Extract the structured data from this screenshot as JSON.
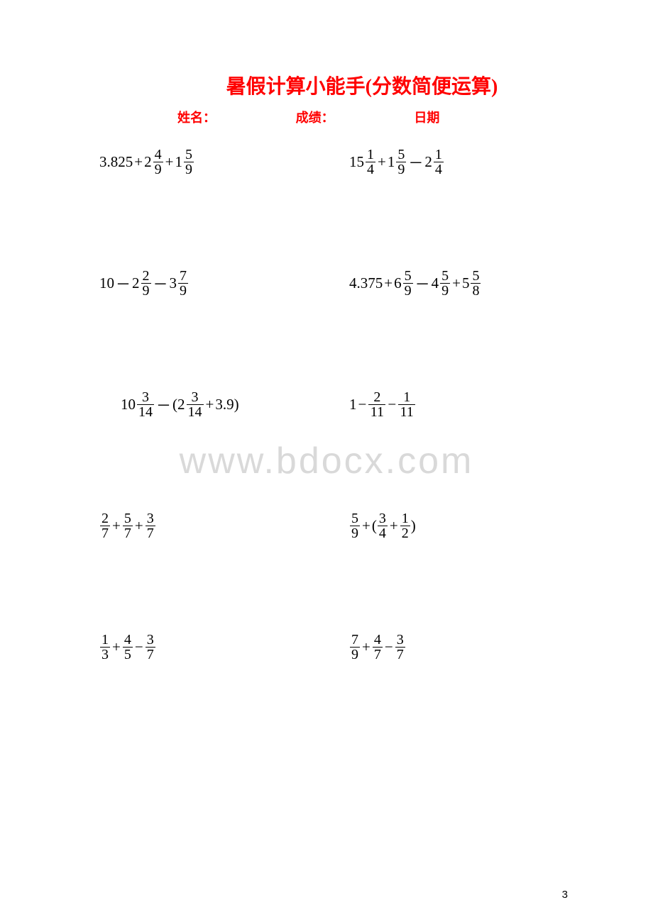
{
  "title": "暑假计算小能手(分数简便运算)",
  "header": {
    "name_label": "姓名：",
    "score_label": "成绩：",
    "date_label": "日期"
  },
  "watermark": "www.bdocx.com",
  "page_number": "3",
  "problems": {
    "row1": {
      "left": {
        "parts": [
          {
            "type": "text",
            "value": "3.825"
          },
          {
            "type": "op",
            "value": "+"
          },
          {
            "type": "mixed",
            "whole": "2",
            "num": "4",
            "den": "9"
          },
          {
            "type": "op",
            "value": "+"
          },
          {
            "type": "mixed",
            "whole": "1",
            "num": "5",
            "den": "9"
          }
        ]
      },
      "right": {
        "parts": [
          {
            "type": "mixed",
            "whole": "15",
            "num": "1",
            "den": "4"
          },
          {
            "type": "op",
            "value": "+"
          },
          {
            "type": "mixed",
            "whole": "1",
            "num": "5",
            "den": "9"
          },
          {
            "type": "op",
            "value": "－"
          },
          {
            "type": "mixed",
            "whole": "2",
            "num": "1",
            "den": "4"
          }
        ]
      }
    },
    "row2": {
      "left": {
        "parts": [
          {
            "type": "text",
            "value": "10"
          },
          {
            "type": "op",
            "value": "－"
          },
          {
            "type": "mixed",
            "whole": "2",
            "num": "2",
            "den": "9"
          },
          {
            "type": "op",
            "value": "－"
          },
          {
            "type": "mixed",
            "whole": "3",
            "num": "7",
            "den": "9"
          }
        ]
      },
      "right": {
        "parts": [
          {
            "type": "text",
            "value": "4.375"
          },
          {
            "type": "op",
            "value": "+"
          },
          {
            "type": "mixed",
            "whole": "6",
            "num": "5",
            "den": "9"
          },
          {
            "type": "op",
            "value": "－"
          },
          {
            "type": "mixed",
            "whole": "4",
            "num": "5",
            "den": "9"
          },
          {
            "type": "op",
            "value": "+"
          },
          {
            "type": "mixed",
            "whole": "5",
            "num": "5",
            "den": "8"
          }
        ]
      }
    },
    "row3": {
      "left": {
        "parts": [
          {
            "type": "mixed",
            "whole": "10",
            "num": "3",
            "den": "14",
            "wide": true
          },
          {
            "type": "op",
            "value": "－"
          },
          {
            "type": "text",
            "value": "("
          },
          {
            "type": "mixed",
            "whole": "2",
            "num": "3",
            "den": "14",
            "wide": true
          },
          {
            "type": "op",
            "value": "+"
          },
          {
            "type": "text",
            "value": "3.9)"
          }
        ]
      },
      "right": {
        "parts": [
          {
            "type": "text",
            "value": "1"
          },
          {
            "type": "op",
            "value": "−"
          },
          {
            "type": "frac",
            "num": "2",
            "den": "11",
            "wide": true
          },
          {
            "type": "op",
            "value": "−"
          },
          {
            "type": "frac",
            "num": "1",
            "den": "11",
            "wide": true
          }
        ]
      }
    },
    "row4": {
      "left": {
        "parts": [
          {
            "type": "frac",
            "num": "2",
            "den": "7"
          },
          {
            "type": "op",
            "value": "+"
          },
          {
            "type": "frac",
            "num": "5",
            "den": "7"
          },
          {
            "type": "op",
            "value": "+"
          },
          {
            "type": "frac",
            "num": "3",
            "den": "7"
          }
        ]
      },
      "right": {
        "parts": [
          {
            "type": "frac",
            "num": "5",
            "den": "9"
          },
          {
            "type": "op",
            "value": "+"
          },
          {
            "type": "text",
            "value": "("
          },
          {
            "type": "frac",
            "num": "3",
            "den": "4"
          },
          {
            "type": "op",
            "value": "+"
          },
          {
            "type": "frac",
            "num": "1",
            "den": "2"
          },
          {
            "type": "text",
            "value": ")"
          }
        ]
      }
    },
    "row5": {
      "left": {
        "parts": [
          {
            "type": "frac",
            "num": "1",
            "den": "3"
          },
          {
            "type": "op",
            "value": "+"
          },
          {
            "type": "frac",
            "num": "4",
            "den": "5"
          },
          {
            "type": "op",
            "value": "−"
          },
          {
            "type": "frac",
            "num": "3",
            "den": "7"
          }
        ]
      },
      "right": {
        "parts": [
          {
            "type": "frac",
            "num": "7",
            "den": "9"
          },
          {
            "type": "op",
            "value": "+"
          },
          {
            "type": "frac",
            "num": "4",
            "den": "7"
          },
          {
            "type": "op",
            "value": "−"
          },
          {
            "type": "frac",
            "num": "3",
            "den": "7"
          }
        ]
      }
    }
  },
  "colors": {
    "title_color": "#ff0000",
    "header_color": "#ff0000",
    "text_color": "#000000",
    "watermark_color": "#d9d9d9",
    "background": "#ffffff"
  },
  "typography": {
    "title_fontsize": 28,
    "header_fontsize": 18,
    "math_fontsize": 21,
    "watermark_fontsize": 52
  }
}
